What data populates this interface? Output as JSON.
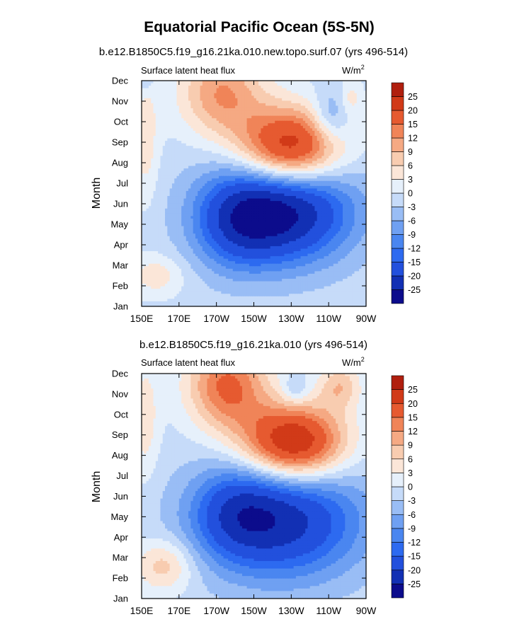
{
  "figure": {
    "title": "Equatorial Pacific Ocean (5S-5N)"
  },
  "colors": {
    "levels_palette": [
      "#0c0c8c",
      "#1230b4",
      "#2250dd",
      "#2d6af0",
      "#4a86f0",
      "#6fa0f2",
      "#99bdf5",
      "#c6dbf9",
      "#e6f0fb",
      "#fbe6d8",
      "#f8ccb0",
      "#f5a983",
      "#f08458",
      "#e65a30",
      "#d13a18",
      "#b01f0e",
      "#900e06"
    ]
  },
  "chart_data": [
    {
      "type": "contour",
      "name": "panel_top",
      "subtitle": "b.e12.B1850C5.f19_g16.21ka.010.new.topo.surf.07 (yrs 496-514)",
      "left_label": "Surface latent heat flux",
      "units_label": "W/m",
      "units_sup": "2",
      "ylabel": "Month",
      "xlabel": "",
      "x_ticklabels": [
        "150E",
        "170E",
        "170W",
        "150W",
        "130W",
        "110W",
        "90W"
      ],
      "x_ticks_deg_east": [
        150,
        170,
        190,
        210,
        230,
        250,
        270
      ],
      "xlim_deg_east": [
        150,
        270
      ],
      "y_ticklabels": [
        "Jan",
        "Feb",
        "Mar",
        "Apr",
        "May",
        "Jun",
        "Jul",
        "Aug",
        "Sep",
        "Oct",
        "Nov",
        "Dec"
      ],
      "colorbar_labels": [
        "-25",
        "-20",
        "-15",
        "-12",
        "-9",
        "-6",
        "-3",
        "0",
        "3",
        "6",
        "9",
        "12",
        "15",
        "20",
        "25"
      ],
      "colorbar_levels": [
        -25,
        -20,
        -15,
        -12,
        -9,
        -6,
        -3,
        0,
        3,
        6,
        9,
        12,
        15,
        20,
        25
      ],
      "features": [
        {
          "lon": 225,
          "month": 4.7,
          "amp": -26,
          "sx": 26,
          "sy": 1.8
        },
        {
          "lon": 200,
          "month": 4.0,
          "amp": -10,
          "sx": 16,
          "sy": 1.6
        },
        {
          "lon": 229,
          "month": 7.7,
          "amp": 27,
          "sx": 19,
          "sy": 1.35
        },
        {
          "lon": 193,
          "month": 10.4,
          "amp": 13,
          "sx": 16,
          "sy": 1.5
        },
        {
          "lon": 251,
          "month": 9.2,
          "amp": -8,
          "sx": 7,
          "sy": 0.9
        },
        {
          "lon": 262,
          "month": 10.2,
          "amp": 5,
          "sx": 4,
          "sy": 0.6
        },
        {
          "lon": 152,
          "month": 8.2,
          "amp": 6,
          "sx": 5,
          "sy": 2.2
        },
        {
          "lon": 158,
          "month": 1.5,
          "amp": 6,
          "sx": 10,
          "sy": 0.7
        },
        {
          "lon": 152,
          "month": 11.4,
          "amp": -6,
          "sx": 3,
          "sy": 0.6
        }
      ]
    },
    {
      "type": "contour",
      "name": "panel_bottom",
      "subtitle": "b.e12.B1850C5.f19_g16.21ka.010 (yrs 496-514)",
      "left_label": "Surface latent heat flux",
      "units_label": "W/m",
      "units_sup": "2",
      "ylabel": "Month",
      "xlabel": "",
      "x_ticklabels": [
        "150E",
        "170E",
        "170W",
        "150W",
        "130W",
        "110W",
        "90W"
      ],
      "x_ticks_deg_east": [
        150,
        170,
        190,
        210,
        230,
        250,
        270
      ],
      "xlim_deg_east": [
        150,
        270
      ],
      "y_ticklabels": [
        "Jan",
        "Feb",
        "Mar",
        "Apr",
        "May",
        "Jun",
        "Jul",
        "Aug",
        "Sep",
        "Oct",
        "Nov",
        "Dec"
      ],
      "colorbar_labels": [
        "-25",
        "-20",
        "-15",
        "-12",
        "-9",
        "-6",
        "-3",
        "0",
        "3",
        "6",
        "9",
        "12",
        "15",
        "20",
        "25"
      ],
      "colorbar_levels": [
        -25,
        -20,
        -15,
        -12,
        -9,
        -6,
        -3,
        0,
        3,
        6,
        9,
        12,
        15,
        20,
        25
      ],
      "features": [
        {
          "lon": 225,
          "month": 3.8,
          "amp": -21,
          "sx": 30,
          "sy": 2.0
        },
        {
          "lon": 200,
          "month": 4.2,
          "amp": -9,
          "sx": 16,
          "sy": 1.5
        },
        {
          "lon": 231,
          "month": 7.6,
          "amp": 28,
          "sx": 19,
          "sy": 1.3
        },
        {
          "lon": 196,
          "month": 10.4,
          "amp": 17,
          "sx": 15,
          "sy": 1.5
        },
        {
          "lon": 256,
          "month": 10.4,
          "amp": 9,
          "sx": 8,
          "sy": 0.8
        },
        {
          "lon": 152,
          "month": 8.8,
          "amp": 6,
          "sx": 5,
          "sy": 2.0
        },
        {
          "lon": 162,
          "month": 1.6,
          "amp": 9,
          "sx": 11,
          "sy": 0.9
        },
        {
          "lon": 232,
          "month": 10.2,
          "amp": -5,
          "sx": 5,
          "sy": 0.5
        }
      ]
    }
  ]
}
